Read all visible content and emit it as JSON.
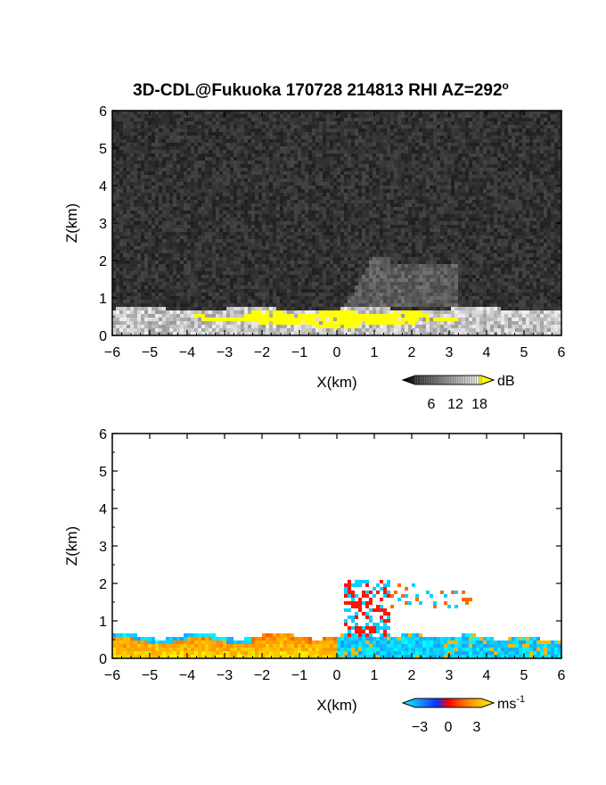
{
  "figure": {
    "title": "3D-CDL@Fukuoka 170728 214813 RHI AZ=292",
    "title_superscript": "o"
  },
  "chart_data": [
    {
      "type": "heatmap",
      "panel": "top",
      "quantity": "backscatter intensity",
      "xlabel": "X(km)",
      "ylabel": "Z(km)",
      "xlim": [
        -6,
        6
      ],
      "ylim": [
        0,
        6
      ],
      "xticks": [
        -6,
        -5,
        -4,
        -3,
        -2,
        -1,
        0,
        1,
        2,
        3,
        4,
        5,
        6
      ],
      "yticks": [
        0,
        1,
        2,
        3,
        4,
        5,
        6
      ],
      "colorbar": {
        "unit": "dB",
        "ticks": [
          "6",
          "12",
          "18"
        ],
        "colormap": "grayscale to yellow",
        "colors": [
          "#000000",
          "#ffffff",
          "#ffff00"
        ]
      },
      "features": {
        "background_noise": "dark gray speckle",
        "high_echo_layer_top_km": 0.7,
        "saturated_band": {
          "x_range_km": [
            -4,
            3.2
          ],
          "z_range_km": [
            0.2,
            0.7
          ],
          "color": "#ffff00"
        },
        "elevated_layer": {
          "x_range_km": [
            0.2,
            3.2
          ],
          "z_range_km": [
            0.8,
            2.1
          ]
        }
      }
    },
    {
      "type": "heatmap",
      "panel": "bottom",
      "quantity": "radial velocity",
      "xlabel": "X(km)",
      "ylabel": "Z(km)",
      "xlim": [
        -6,
        6
      ],
      "ylim": [
        0,
        6
      ],
      "xticks": [
        -6,
        -5,
        -4,
        -3,
        -2,
        -1,
        0,
        1,
        2,
        3,
        4,
        5,
        6
      ],
      "yticks": [
        0,
        1,
        2,
        3,
        4,
        5,
        6
      ],
      "colorbar": {
        "unit": "ms",
        "unit_superscript": "-1",
        "ticks": [
          "-3",
          "0",
          "3"
        ],
        "range": [
          -3,
          3
        ],
        "colors": [
          "#00ffff",
          "#1040ff",
          "#ff0000",
          "#ffff00"
        ]
      },
      "features": {
        "west_of_origin": {
          "x_range_km": [
            -6,
            0
          ],
          "z_range_km": [
            0,
            0.6
          ],
          "velocity_ms": 2.5,
          "top_edge_velocity_ms": -2.5
        },
        "east_of_origin": {
          "x_range_km": [
            0,
            6
          ],
          "z_range_km": [
            0,
            0.6
          ],
          "velocity_ms": -2.5
        },
        "elevated_patches": {
          "x_range_km": [
            0.2,
            3.6
          ],
          "z_range_km": [
            0.8,
            2.1
          ],
          "velocity": "mixed"
        }
      }
    }
  ]
}
